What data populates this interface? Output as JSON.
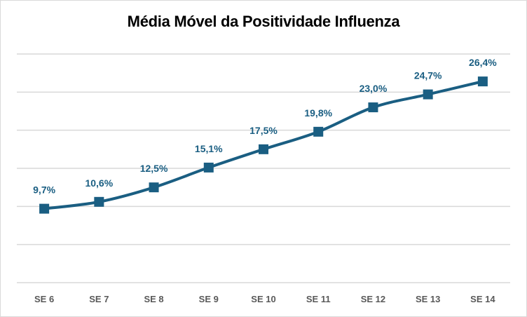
{
  "chart_data": {
    "type": "line",
    "title": "Média Móvel da Positividade  Influenza",
    "xlabel": "",
    "ylabel": "",
    "categories": [
      "SE 6",
      "SE 7",
      "SE 8",
      "SE 9",
      "SE 10",
      "SE 11",
      "SE 12",
      "SE 13",
      "SE 14"
    ],
    "series": [
      {
        "name": "Média Móvel da Positividade Influenza",
        "values": [
          9.7,
          10.6,
          12.5,
          15.1,
          17.5,
          19.8,
          23.0,
          24.7,
          26.4
        ],
        "labels": [
          "9,7%",
          "10,6%",
          "12,5%",
          "15,1%",
          "17,5%",
          "19,8%",
          "23,0%",
          "24,7%",
          "26,4%"
        ],
        "color": "#1a5e82",
        "marker": "square",
        "smooth": true
      }
    ],
    "ylim": [
      0,
      30
    ],
    "ytick_step": 5,
    "y_axis_labels_visible": false,
    "grid": true,
    "grid_color": "#d9d9d9",
    "legend": "none"
  }
}
